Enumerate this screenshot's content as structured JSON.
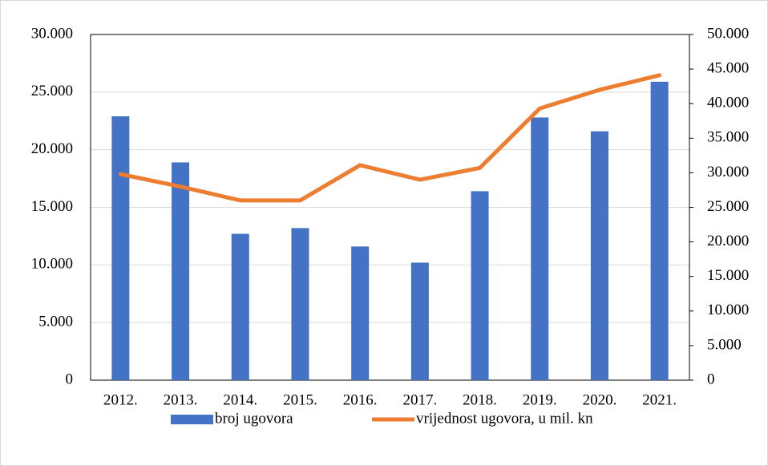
{
  "chart_data": {
    "type": "bar",
    "categories": [
      "2012.",
      "2013.",
      "2014.",
      "2015.",
      "2016.",
      "2017.",
      "2018.",
      "2019.",
      "2020.",
      "2021."
    ],
    "series": [
      {
        "name": "broj ugovora",
        "type": "bar",
        "color": "#4472c4",
        "values": [
          22900,
          18900,
          12700,
          13200,
          11600,
          10200,
          16400,
          22800,
          21600,
          25900
        ]
      },
      {
        "name": "vrijednost ugovora, u mil. kn",
        "type": "line",
        "axis": "y2",
        "color": "#ed7d31",
        "values": [
          29800,
          28000,
          26000,
          26000,
          31100,
          29000,
          30700,
          39300,
          42000,
          44100
        ]
      }
    ],
    "ylim": [
      0,
      30000
    ],
    "yticks": [
      0,
      {
        "value": 5000,
        "label": "5.000"
      },
      {
        "value": 10000,
        "label": "10.000"
      },
      {
        "value": 15000,
        "label": "15.000"
      },
      {
        "value": 20000,
        "label": "20.000"
      },
      {
        "value": 25000,
        "label": "25.000"
      },
      {
        "value": 30000,
        "label": "30.000"
      }
    ],
    "y2lim": [
      0,
      50000
    ],
    "y2ticks": [
      0,
      {
        "value": 5000,
        "label": "5.000"
      },
      {
        "value": 10000,
        "label": "10.000"
      },
      {
        "value": 15000,
        "label": "15.000"
      },
      {
        "value": 20000,
        "label": "20.000"
      },
      {
        "value": 25000,
        "label": "25.000"
      },
      {
        "value": 30000,
        "label": "30.000"
      },
      {
        "value": 35000,
        "label": "35.000"
      },
      {
        "value": 40000,
        "label": "40.000"
      },
      {
        "value": 45000,
        "label": "45.000"
      },
      {
        "value": 50000,
        "label": "50.000"
      }
    ],
    "grid": true,
    "legend": "bottom"
  }
}
